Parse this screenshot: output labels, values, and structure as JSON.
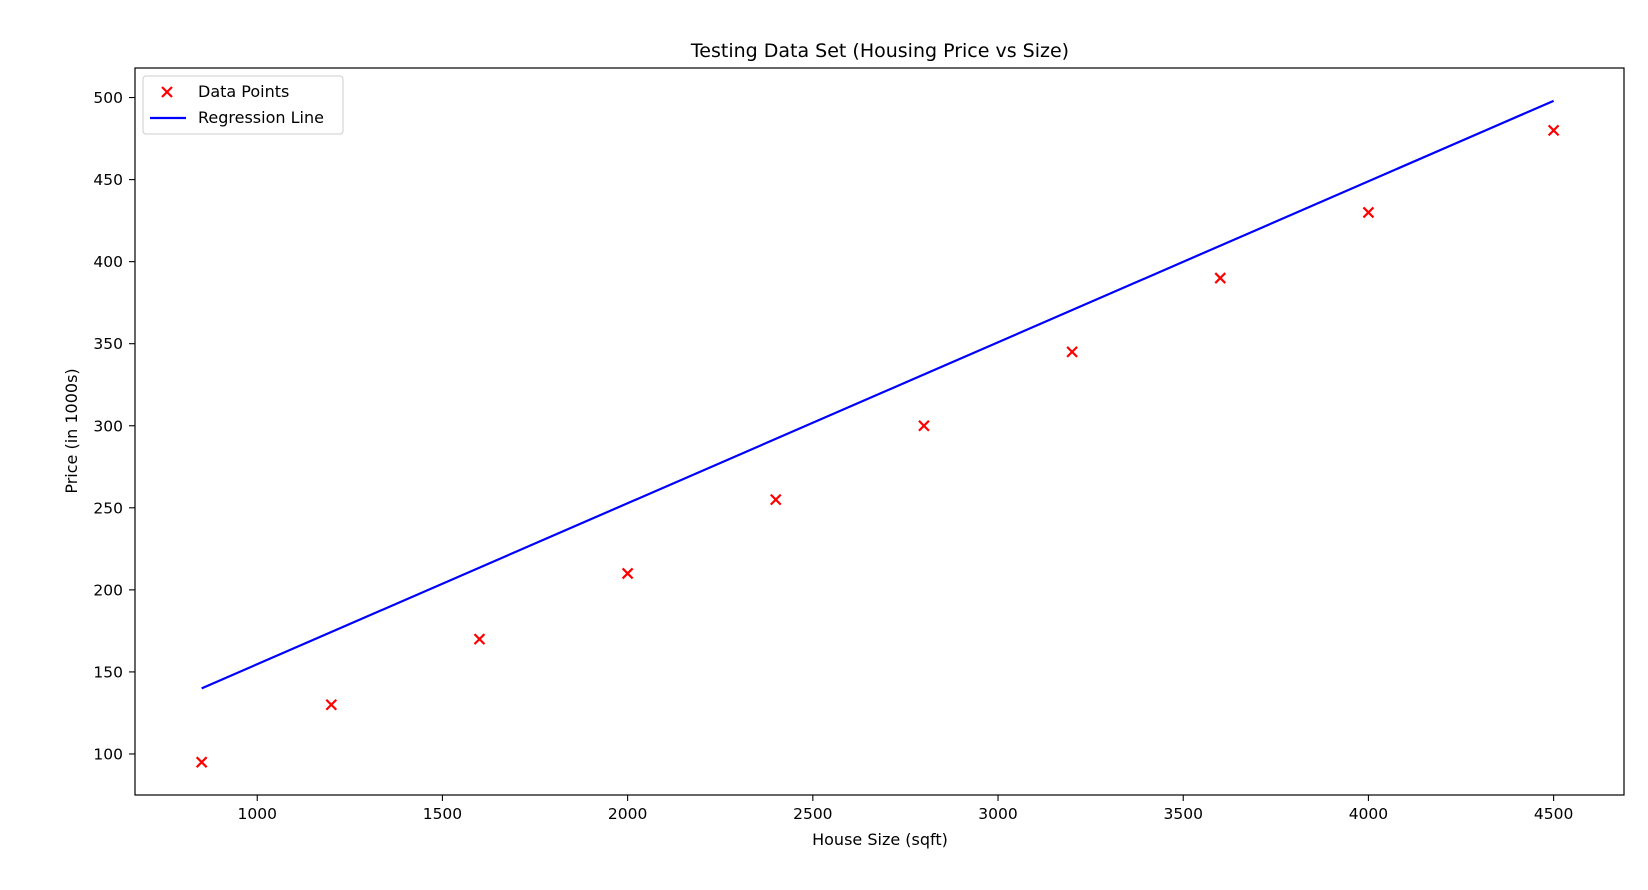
{
  "chart_data": {
    "type": "scatter",
    "title": "Testing Data Set (Housing Price vs Size)",
    "xlabel": "House Size (sqft)",
    "ylabel": "Price (in 1000s)",
    "xlim": [
      670,
      4690
    ],
    "ylim": [
      75,
      518
    ],
    "xticks": [
      1000,
      1500,
      2000,
      2500,
      3000,
      3500,
      4000,
      4500
    ],
    "yticks": [
      100,
      150,
      200,
      250,
      300,
      350,
      400,
      450,
      500
    ],
    "grid": false,
    "legend_position": "top-left",
    "series": [
      {
        "name": "Data Points",
        "kind": "scatter",
        "marker": "x",
        "color": "#ff0000",
        "x": [
          850,
          1200,
          1600,
          2000,
          2400,
          2800,
          3200,
          3600,
          4000,
          4500
        ],
        "y": [
          95,
          130,
          170,
          210,
          255,
          300,
          345,
          390,
          430,
          480
        ]
      },
      {
        "name": "Regression Line",
        "kind": "line",
        "color": "#0000ff",
        "x": [
          850,
          4500
        ],
        "y": [
          140,
          498
        ]
      }
    ]
  }
}
